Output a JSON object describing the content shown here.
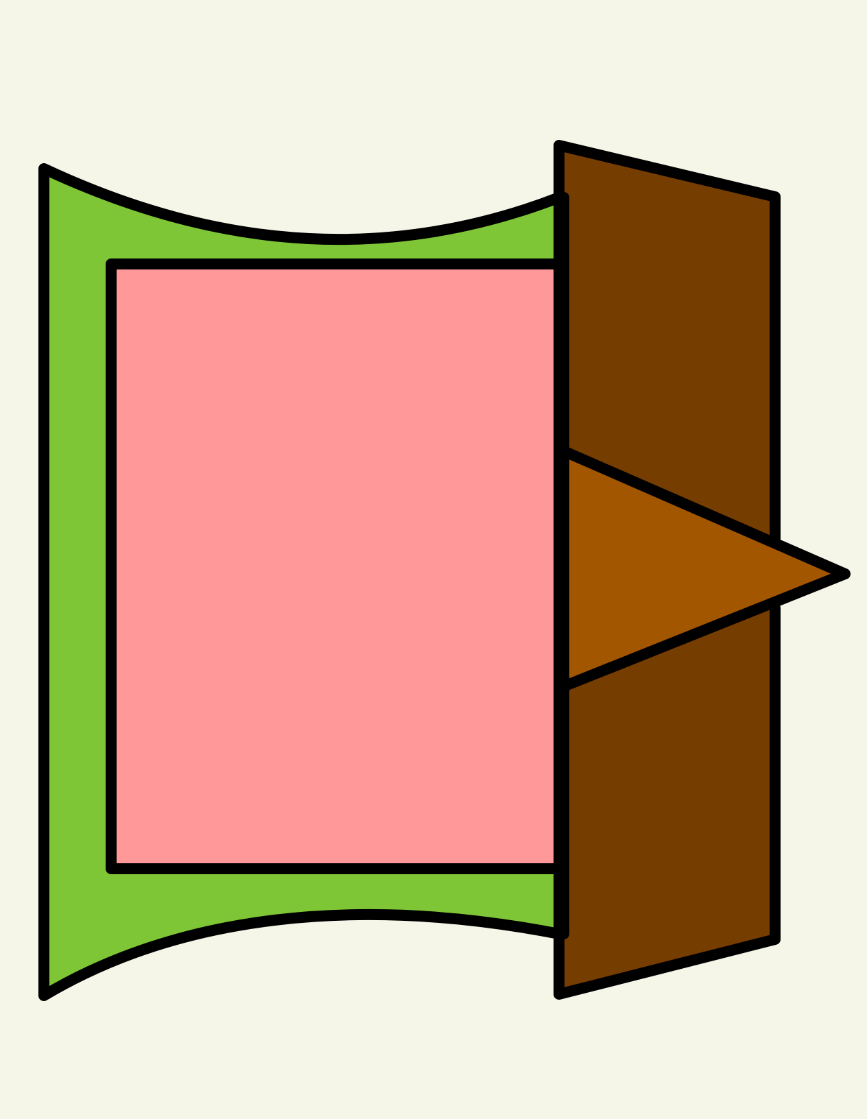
{
  "colors": {
    "background": "#f5f5e8",
    "outline": "#000000",
    "green_panel": "#7ec636",
    "pink_panel": "#ff9999",
    "dark_brown_panel": "#763d00",
    "orange_arrow": "#a35600"
  },
  "icons": {
    "drawing": "exit-door-icon",
    "door_frame": "door-frame-icon",
    "door_opening": "door-opening-icon",
    "door_leaf": "door-leaf-icon",
    "arrow": "exit-arrow-icon"
  }
}
